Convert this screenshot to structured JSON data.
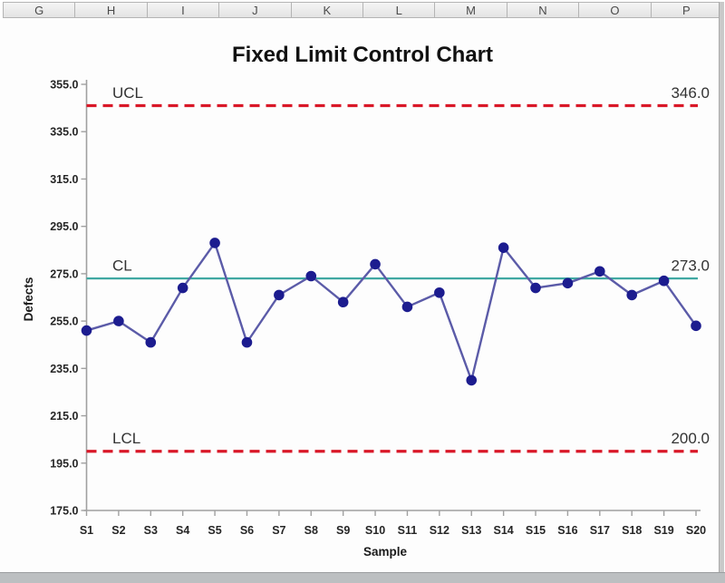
{
  "spreadsheet": {
    "column_headers": [
      "G",
      "H",
      "I",
      "J",
      "K",
      "L",
      "M",
      "N",
      "O",
      "P"
    ]
  },
  "chart_data": {
    "type": "line",
    "title": "Fixed Limit Control Chart",
    "xlabel": "Sample",
    "ylabel": "Defects",
    "categories": [
      "S1",
      "S2",
      "S3",
      "S4",
      "S5",
      "S6",
      "S7",
      "S8",
      "S9",
      "S10",
      "S11",
      "S12",
      "S13",
      "S14",
      "S15",
      "S16",
      "S17",
      "S18",
      "S19",
      "S20"
    ],
    "series": [
      {
        "name": "Defects",
        "values": [
          251,
          255,
          246,
          269,
          288,
          246,
          266,
          274,
          263,
          279,
          261,
          267,
          230,
          286,
          269,
          271,
          276,
          266,
          272,
          253
        ]
      }
    ],
    "control_lines": {
      "ucl": {
        "label": "UCL",
        "value": 346.0,
        "display": "346.0",
        "style": "dashed",
        "color": "#d91828"
      },
      "cl": {
        "label": "CL",
        "value": 273.0,
        "display": "273.0",
        "style": "solid",
        "color": "#3fa8a2"
      },
      "lcl": {
        "label": "LCL",
        "value": 200.0,
        "display": "200.0",
        "style": "dashed",
        "color": "#d91828"
      }
    },
    "ylim": [
      175,
      355
    ],
    "ytick_step": 20,
    "ytick_labels": [
      "355.0",
      "335.0",
      "315.0",
      "295.0",
      "275.0",
      "255.0",
      "235.0",
      "215.0",
      "195.0",
      "175.0"
    ],
    "grid": false,
    "legend": "none",
    "colors": {
      "series_line": "#5b5ba8",
      "series_marker": "#1c1c8f",
      "axis": "#a0a0a0",
      "title_text": "#111111",
      "control_text": "#333333"
    }
  }
}
